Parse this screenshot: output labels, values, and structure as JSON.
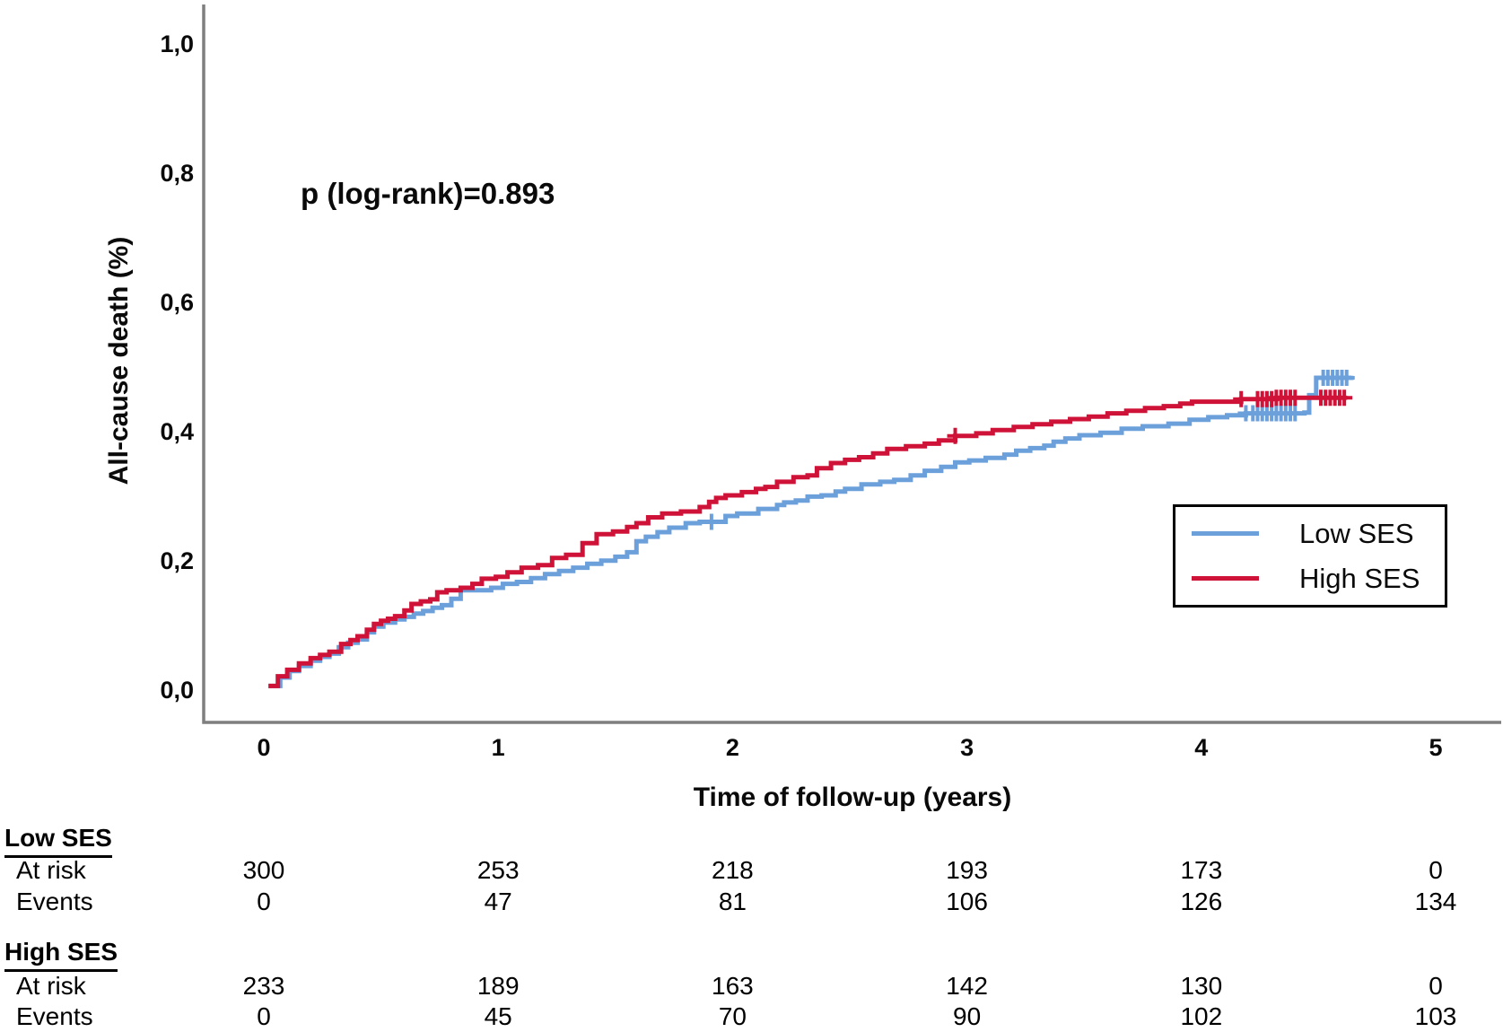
{
  "annotation": {
    "p_value_text": "p (log-rank)=0.893"
  },
  "axes": {
    "y_label": "All-cause death (%)",
    "x_label": "Time of follow-up (years)"
  },
  "legend": {
    "items": [
      {
        "label": "Low SES",
        "color": "#6ca0db"
      },
      {
        "label": "High SES",
        "color": "#cf1237"
      }
    ]
  },
  "risk_table": {
    "groups": [
      {
        "name": "Low SES",
        "rows": [
          {
            "label": "At risk",
            "values": [
              "300",
              "253",
              "218",
              "193",
              "173",
              "0"
            ]
          },
          {
            "label": "Events",
            "values": [
              "0",
              "47",
              "81",
              "106",
              "126",
              "134"
            ]
          }
        ]
      },
      {
        "name": "High SES",
        "rows": [
          {
            "label": "At risk",
            "values": [
              "233",
              "189",
              "163",
              "142",
              "130",
              "0"
            ]
          },
          {
            "label": "Events",
            "values": [
              "0",
              "45",
              "70",
              "90",
              "102",
              "103"
            ]
          }
        ]
      }
    ]
  },
  "chart_data": {
    "type": "line",
    "subtype": "kaplan-meier-cumulative-incidence",
    "title": "",
    "xlabel": "Time of follow-up (years)",
    "ylabel": "All-cause death (%)",
    "xlim": [
      0,
      5
    ],
    "ylim": [
      0,
      1.0
    ],
    "grid": false,
    "legend_position": "right-middle",
    "p_log_rank": 0.893,
    "x_ticks": [
      {
        "label": "0",
        "value": 0
      },
      {
        "label": "1",
        "value": 1
      },
      {
        "label": "2",
        "value": 2
      },
      {
        "label": "3",
        "value": 3
      },
      {
        "label": "4",
        "value": 4
      },
      {
        "label": "5",
        "value": 5
      }
    ],
    "y_ticks": [
      {
        "label": "0,0",
        "value": 0.0
      },
      {
        "label": "0,2",
        "value": 0.2
      },
      {
        "label": "0,4",
        "value": 0.4
      },
      {
        "label": "0,6",
        "value": 0.6
      },
      {
        "label": "0,8",
        "value": 0.8
      },
      {
        "label": "1,0",
        "value": 1.0
      }
    ],
    "series": [
      {
        "name": "Low SES",
        "color": "#6ca0db",
        "step": "after",
        "points": [
          [
            0.02,
            0.005
          ],
          [
            0.07,
            0.018
          ],
          [
            0.11,
            0.028
          ],
          [
            0.15,
            0.036
          ],
          [
            0.2,
            0.044
          ],
          [
            0.24,
            0.05
          ],
          [
            0.28,
            0.055
          ],
          [
            0.32,
            0.065
          ],
          [
            0.36,
            0.072
          ],
          [
            0.4,
            0.077
          ],
          [
            0.44,
            0.088
          ],
          [
            0.47,
            0.097
          ],
          [
            0.51,
            0.103
          ],
          [
            0.56,
            0.108
          ],
          [
            0.6,
            0.112
          ],
          [
            0.64,
            0.117
          ],
          [
            0.68,
            0.121
          ],
          [
            0.72,
            0.126
          ],
          [
            0.76,
            0.13
          ],
          [
            0.8,
            0.14
          ],
          [
            0.84,
            0.153
          ],
          [
            0.97,
            0.157
          ],
          [
            1.02,
            0.163
          ],
          [
            1.08,
            0.166
          ],
          [
            1.14,
            0.172
          ],
          [
            1.2,
            0.178
          ],
          [
            1.26,
            0.183
          ],
          [
            1.32,
            0.188
          ],
          [
            1.38,
            0.194
          ],
          [
            1.44,
            0.199
          ],
          [
            1.5,
            0.205
          ],
          [
            1.55,
            0.212
          ],
          [
            1.59,
            0.229
          ],
          [
            1.63,
            0.236
          ],
          [
            1.68,
            0.243
          ],
          [
            1.73,
            0.25
          ],
          [
            1.8,
            0.257
          ],
          [
            1.86,
            0.259
          ],
          [
            1.97,
            0.268
          ],
          [
            2.02,
            0.272
          ],
          [
            2.11,
            0.279
          ],
          [
            2.19,
            0.285
          ],
          [
            2.22,
            0.289
          ],
          [
            2.27,
            0.292
          ],
          [
            2.32,
            0.298
          ],
          [
            2.38,
            0.3
          ],
          [
            2.44,
            0.306
          ],
          [
            2.48,
            0.31
          ],
          [
            2.55,
            0.317
          ],
          [
            2.63,
            0.321
          ],
          [
            2.69,
            0.324
          ],
          [
            2.76,
            0.331
          ],
          [
            2.82,
            0.338
          ],
          [
            2.89,
            0.344
          ],
          [
            2.95,
            0.351
          ],
          [
            3.01,
            0.354
          ],
          [
            3.08,
            0.358
          ],
          [
            3.16,
            0.363
          ],
          [
            3.21,
            0.369
          ],
          [
            3.27,
            0.373
          ],
          [
            3.33,
            0.377
          ],
          [
            3.37,
            0.383
          ],
          [
            3.42,
            0.388
          ],
          [
            3.48,
            0.393
          ],
          [
            3.57,
            0.397
          ],
          [
            3.66,
            0.403
          ],
          [
            3.75,
            0.407
          ],
          [
            3.86,
            0.411
          ],
          [
            3.95,
            0.417
          ],
          [
            4.03,
            0.421
          ],
          [
            4.11,
            0.424
          ],
          [
            4.19,
            0.427
          ],
          [
            4.44,
            0.428
          ],
          [
            4.46,
            0.455
          ],
          [
            4.49,
            0.482
          ],
          [
            4.64,
            0.485
          ]
        ],
        "censor_times": [
          1.91,
          4.19,
          4.22,
          4.24,
          4.26,
          4.28,
          4.3,
          4.32,
          4.34,
          4.36,
          4.38,
          4.4,
          4.52,
          4.54,
          4.56,
          4.58,
          4.6,
          4.62
        ]
      },
      {
        "name": "High SES",
        "color": "#cf1237",
        "step": "after",
        "points": [
          [
            0.02,
            0.005
          ],
          [
            0.06,
            0.02
          ],
          [
            0.1,
            0.03
          ],
          [
            0.15,
            0.04
          ],
          [
            0.2,
            0.048
          ],
          [
            0.24,
            0.053
          ],
          [
            0.28,
            0.058
          ],
          [
            0.33,
            0.07
          ],
          [
            0.37,
            0.076
          ],
          [
            0.4,
            0.082
          ],
          [
            0.44,
            0.092
          ],
          [
            0.47,
            0.101
          ],
          [
            0.5,
            0.106
          ],
          [
            0.53,
            0.109
          ],
          [
            0.56,
            0.113
          ],
          [
            0.6,
            0.122
          ],
          [
            0.63,
            0.132
          ],
          [
            0.67,
            0.136
          ],
          [
            0.71,
            0.139
          ],
          [
            0.74,
            0.15
          ],
          [
            0.78,
            0.153
          ],
          [
            0.84,
            0.157
          ],
          [
            0.89,
            0.163
          ],
          [
            0.93,
            0.171
          ],
          [
            0.99,
            0.174
          ],
          [
            1.04,
            0.181
          ],
          [
            1.1,
            0.188
          ],
          [
            1.17,
            0.192
          ],
          [
            1.23,
            0.203
          ],
          [
            1.29,
            0.208
          ],
          [
            1.36,
            0.226
          ],
          [
            1.42,
            0.24
          ],
          [
            1.49,
            0.244
          ],
          [
            1.55,
            0.251
          ],
          [
            1.59,
            0.257
          ],
          [
            1.64,
            0.266
          ],
          [
            1.7,
            0.272
          ],
          [
            1.78,
            0.275
          ],
          [
            1.86,
            0.282
          ],
          [
            1.9,
            0.29
          ],
          [
            1.93,
            0.296
          ],
          [
            1.97,
            0.3
          ],
          [
            2.04,
            0.305
          ],
          [
            2.1,
            0.31
          ],
          [
            2.14,
            0.313
          ],
          [
            2.19,
            0.321
          ],
          [
            2.26,
            0.328
          ],
          [
            2.32,
            0.331
          ],
          [
            2.36,
            0.342
          ],
          [
            2.42,
            0.35
          ],
          [
            2.48,
            0.355
          ],
          [
            2.54,
            0.359
          ],
          [
            2.6,
            0.365
          ],
          [
            2.66,
            0.372
          ],
          [
            2.74,
            0.376
          ],
          [
            2.82,
            0.38
          ],
          [
            2.88,
            0.385
          ],
          [
            2.95,
            0.392
          ],
          [
            3.04,
            0.396
          ],
          [
            3.11,
            0.401
          ],
          [
            3.2,
            0.406
          ],
          [
            3.28,
            0.41
          ],
          [
            3.36,
            0.414
          ],
          [
            3.44,
            0.418
          ],
          [
            3.52,
            0.422
          ],
          [
            3.6,
            0.427
          ],
          [
            3.68,
            0.431
          ],
          [
            3.76,
            0.435
          ],
          [
            3.84,
            0.438
          ],
          [
            3.91,
            0.442
          ],
          [
            3.96,
            0.445
          ],
          [
            4.17,
            0.449
          ],
          [
            4.32,
            0.451
          ],
          [
            4.62,
            0.451
          ]
        ],
        "censor_times": [
          2.95,
          4.17,
          4.24,
          4.26,
          4.28,
          4.3,
          4.32,
          4.34,
          4.36,
          4.38,
          4.4,
          4.51,
          4.53,
          4.55,
          4.57,
          4.59,
          4.61
        ]
      }
    ]
  }
}
